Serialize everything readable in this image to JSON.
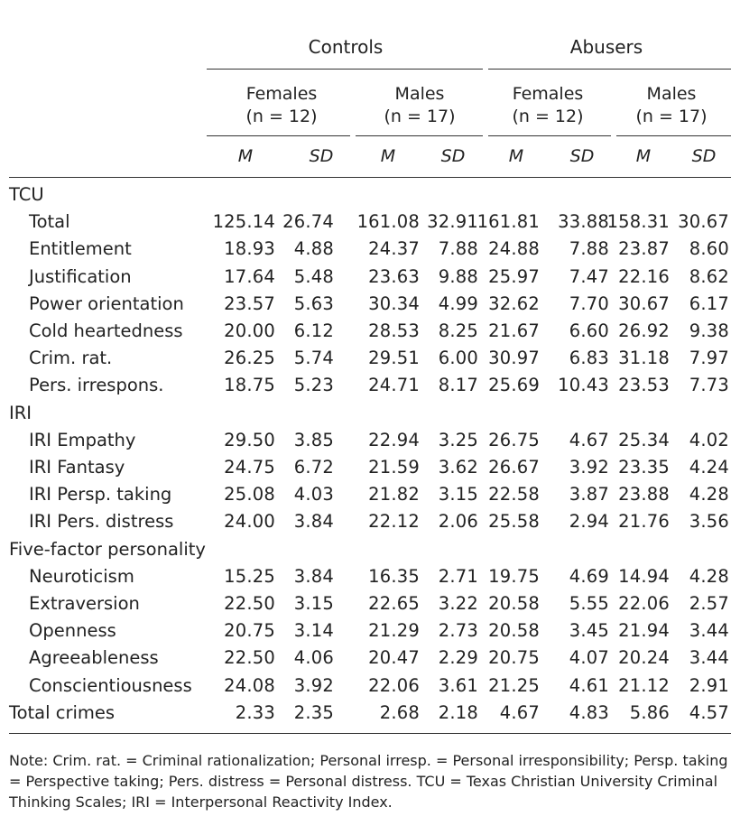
{
  "header": {
    "groups": [
      "Controls",
      "Abusers"
    ],
    "subgroups": [
      {
        "sex": "Females",
        "n": "(n = 12)"
      },
      {
        "sex": "Males",
        "n": "(n = 17)"
      },
      {
        "sex": "Females",
        "n": "(n = 12)"
      },
      {
        "sex": "Males",
        "n": "(n = 17)"
      }
    ],
    "stats": [
      "M",
      "SD",
      "M",
      "SD",
      "M",
      "SD",
      "M",
      "SD"
    ]
  },
  "rows": [
    {
      "label": "TCU",
      "section": true,
      "values": []
    },
    {
      "label": "Total",
      "values": [
        "125.14",
        "26.74",
        "161.08",
        "32.91",
        "161.81",
        "33.88",
        "158.31",
        "30.67"
      ]
    },
    {
      "label": "Entitlement",
      "values": [
        "18.93",
        "4.88",
        "24.37",
        "7.88",
        "24.88",
        "7.88",
        "23.87",
        "8.60"
      ]
    },
    {
      "label": "Justification",
      "values": [
        "17.64",
        "5.48",
        "23.63",
        "9.88",
        "25.97",
        "7.47",
        "22.16",
        "8.62"
      ]
    },
    {
      "label": "Power orientation",
      "values": [
        "23.57",
        "5.63",
        "30.34",
        "4.99",
        "32.62",
        "7.70",
        "30.67",
        "6.17"
      ]
    },
    {
      "label": "Cold heartedness",
      "values": [
        "20.00",
        "6.12",
        "28.53",
        "8.25",
        "21.67",
        "6.60",
        "26.92",
        "9.38"
      ]
    },
    {
      "label": "Crim. rat.",
      "values": [
        "26.25",
        "5.74",
        "29.51",
        "6.00",
        "30.97",
        "6.83",
        "31.18",
        "7.97"
      ]
    },
    {
      "label": "Pers. irrespons.",
      "values": [
        "18.75",
        "5.23",
        "24.71",
        "8.17",
        "25.69",
        "10.43",
        "23.53",
        "7.73"
      ]
    },
    {
      "label": "IRI",
      "section": true,
      "values": []
    },
    {
      "label": "IRI Empathy",
      "values": [
        "29.50",
        "3.85",
        "22.94",
        "3.25",
        "26.75",
        "4.67",
        "25.34",
        "4.02"
      ]
    },
    {
      "label": "IRI Fantasy",
      "values": [
        "24.75",
        "6.72",
        "21.59",
        "3.62",
        "26.67",
        "3.92",
        "23.35",
        "4.24"
      ]
    },
    {
      "label": "IRI Persp. taking",
      "values": [
        "25.08",
        "4.03",
        "21.82",
        "3.15",
        "22.58",
        "3.87",
        "23.88",
        "4.28"
      ]
    },
    {
      "label": "IRI Pers. distress",
      "values": [
        "24.00",
        "3.84",
        "22.12",
        "2.06",
        "25.58",
        "2.94",
        "21.76",
        "3.56"
      ]
    },
    {
      "label": "Five-factor personality",
      "section": true,
      "values": []
    },
    {
      "label": "Neuroticism",
      "values": [
        "15.25",
        "3.84",
        "16.35",
        "2.71",
        "19.75",
        "4.69",
        "14.94",
        "4.28"
      ]
    },
    {
      "label": "Extraversion",
      "values": [
        "22.50",
        "3.15",
        "22.65",
        "3.22",
        "20.58",
        "5.55",
        "22.06",
        "2.57"
      ]
    },
    {
      "label": "Openness",
      "values": [
        "20.75",
        "3.14",
        "21.29",
        "2.73",
        "20.58",
        "3.45",
        "21.94",
        "3.44"
      ]
    },
    {
      "label": "Agreeableness",
      "values": [
        "22.50",
        "4.06",
        "20.47",
        "2.29",
        "20.75",
        "4.07",
        "20.24",
        "3.44"
      ]
    },
    {
      "label": "Conscientiousness",
      "values": [
        "24.08",
        "3.92",
        "22.06",
        "3.61",
        "21.25",
        "4.61",
        "21.12",
        "2.91"
      ]
    },
    {
      "label": "Total crimes",
      "section": true,
      "values": [
        "2.33",
        "2.35",
        "2.68",
        "2.18",
        "4.67",
        "4.83",
        "5.86",
        "4.57"
      ]
    }
  ],
  "note": "Note: Crim. rat. = Criminal rationalization; Personal irresp. = Personal irresponsibility; Persp. taking = Perspective taking; Pers. distress = Personal distress. TCU = Texas Christian University Criminal Thinking Scales; IRI = Interpersonal Reactivity Index."
}
